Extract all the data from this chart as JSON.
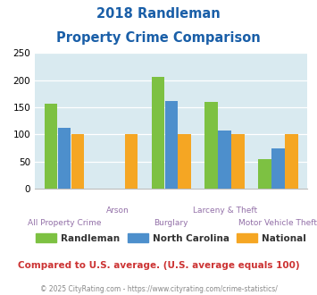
{
  "title_line1": "2018 Randleman",
  "title_line2": "Property Crime Comparison",
  "categories": [
    "All Property Crime",
    "Arson",
    "Burglary",
    "Larceny & Theft",
    "Motor Vehicle Theft"
  ],
  "randleman": [
    156,
    0,
    207,
    160,
    55
  ],
  "north_carolina": [
    113,
    0,
    161,
    108,
    75
  ],
  "national": [
    100,
    100,
    100,
    100,
    100
  ],
  "color_randleman": "#7dc142",
  "color_nc": "#4d8fcc",
  "color_national": "#f5a623",
  "ylim": [
    0,
    250
  ],
  "yticks": [
    0,
    50,
    100,
    150,
    200,
    250
  ],
  "bg_color": "#d9eaf0",
  "caption": "Compared to U.S. average. (U.S. average equals 100)",
  "footer": "© 2025 CityRating.com - https://www.cityrating.com/crime-statistics/",
  "title_color": "#1a5fa8",
  "xlabel_color": "#9370a8",
  "caption_color": "#cc3333",
  "footer_color": "#888888",
  "legend_labels": [
    "Randleman",
    "North Carolina",
    "National"
  ],
  "legend_text_color": "#333333"
}
